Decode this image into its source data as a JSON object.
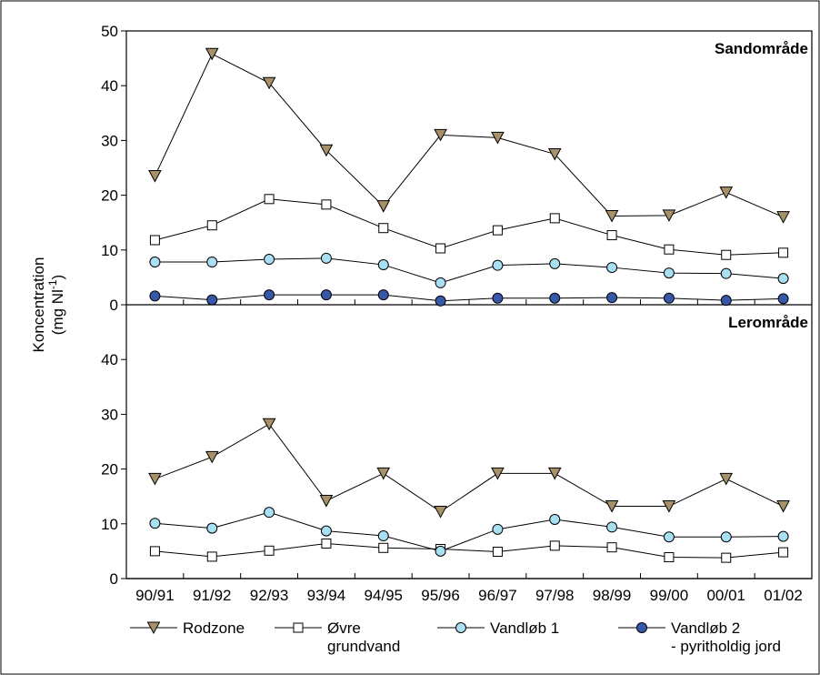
{
  "chart_data": {
    "type": "line",
    "ylabel_line1": "Koncentration",
    "ylabel_line2_main": "(mg Nl",
    "ylabel_line2_sup": "-1",
    "ylabel_line2_end": ")",
    "categories": [
      "90/91",
      "91/92",
      "92/93",
      "93/94",
      "94/95",
      "95/96",
      "96/97",
      "97/98",
      "98/99",
      "99/00",
      "00/01",
      "01/02"
    ],
    "panels": [
      {
        "title": "Sandområde",
        "ylim": [
          0,
          50
        ],
        "yticks": [
          "0",
          "10",
          "20",
          "30",
          "40",
          "50"
        ],
        "series": [
          {
            "name": "Rodzone",
            "marker": "triangle-down",
            "values": [
              23.5,
              45.8,
              40.5,
              28.2,
              18.0,
              31.0,
              30.5,
              27.5,
              16.2,
              16.3,
              20.5,
              16.0
            ]
          },
          {
            "name": "Øvre grundvand",
            "marker": "square",
            "values": [
              11.8,
              14.5,
              19.3,
              18.3,
              14.0,
              10.3,
              13.6,
              15.8,
              12.7,
              10.1,
              9.1,
              9.5
            ]
          },
          {
            "name": "Vandløb 1",
            "marker": "circle-light",
            "values": [
              7.8,
              7.8,
              8.3,
              8.5,
              7.3,
              4.0,
              7.2,
              7.5,
              6.8,
              5.8,
              5.7,
              4.8
            ]
          },
          {
            "name": "Vandløb 2 - pyritholdig jord",
            "marker": "circle-dark",
            "values": [
              1.6,
              0.9,
              1.8,
              1.8,
              1.8,
              0.7,
              1.2,
              1.2,
              1.3,
              1.2,
              0.8,
              1.1
            ]
          }
        ]
      },
      {
        "title": "Lerområde",
        "ylim": [
          0,
          50
        ],
        "yticks": [
          "0",
          "10",
          "20",
          "30",
          "40"
        ],
        "series": [
          {
            "name": "Rodzone",
            "marker": "triangle-down",
            "values": [
              18.2,
              22.2,
              28.2,
              14.2,
              19.2,
              12.2,
              19.2,
              19.2,
              13.2,
              13.2,
              18.2,
              13.2
            ]
          },
          {
            "name": "Øvre grundvand",
            "marker": "square",
            "values": [
              5.0,
              4.0,
              5.1,
              6.4,
              5.6,
              5.4,
              4.9,
              6.0,
              5.7,
              3.9,
              3.8,
              4.8
            ]
          },
          {
            "name": "Vandløb 1",
            "marker": "circle-light",
            "values": [
              10.1,
              9.2,
              12.1,
              8.7,
              7.8,
              5.0,
              9.0,
              10.8,
              9.4,
              7.6,
              7.6,
              7.7
            ]
          }
        ]
      }
    ],
    "legend": [
      {
        "line1": "Rodzone",
        "line2": "",
        "marker": "triangle-down"
      },
      {
        "line1": "Øvre",
        "line2": "grundvand",
        "marker": "square"
      },
      {
        "line1": "Vandløb 1",
        "line2": "",
        "marker": "circle-light"
      },
      {
        "line1": "Vandløb 2",
        "line2": "- pyritholdig jord",
        "marker": "circle-dark"
      }
    ],
    "colors": {
      "triangle": "#a6916a",
      "circle_light": "#a8dff2",
      "circle_dark": "#3758a8",
      "square": "#ffffff",
      "line": "#000000"
    }
  }
}
